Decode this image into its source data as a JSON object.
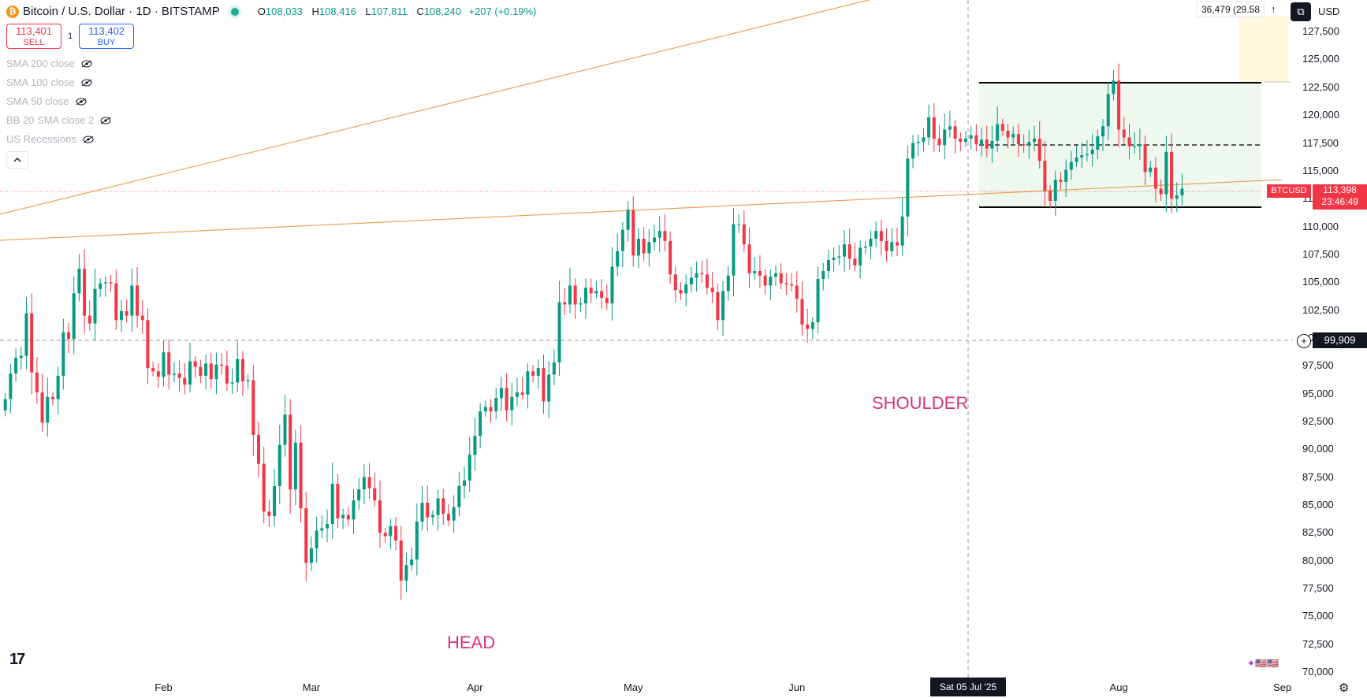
{
  "header": {
    "symbol_title": "Bitcoin / U.S. Dollar · 1D · BITSTAMP",
    "coin_glyph": "₿",
    "ohlc": {
      "o_label": "O",
      "o": "108,033",
      "h_label": "H",
      "h": "108,416",
      "l_label": "L",
      "l": "107,811",
      "c_label": "C",
      "c": "108,240",
      "change": "+207 (+0.19%)"
    },
    "sell_price": "113,401",
    "sell_label": "SELL",
    "spread": "1",
    "buy_price": "113,402",
    "buy_label": "BUY"
  },
  "indicators": [
    {
      "label": "SMA 200 close"
    },
    {
      "label": "SMA 100 close"
    },
    {
      "label": "SMA 50 close"
    },
    {
      "label": "BB 20 SMA close 2"
    },
    {
      "label": "US Recessions"
    }
  ],
  "toolbar": {
    "pl_readout": "36,479 (29.58",
    "currency": "USD",
    "up_arrow": "↑",
    "square_glyph": "⧉",
    "logo": "17",
    "gear_glyph": "⚙",
    "flags_text": "✦🇺🇸🇺🇸"
  },
  "annotations": {
    "head": "HEAD",
    "shoulder": "SHOULDER"
  },
  "tags": {
    "symbol": "BTCUSD",
    "last_price": "113,398",
    "countdown": "23:46:49",
    "crosshair_price": "99,909",
    "crosshair_date": "Sat 05 Jul '25"
  },
  "colors": {
    "up": "#089981",
    "down": "#f23645",
    "trend": "#e8a35a",
    "range_fill": "#e8f5e9",
    "annotation": "#d6337a"
  },
  "chart_data": {
    "type": "candlestick",
    "ylim": [
      70000,
      128500
    ],
    "y_ticks": [
      "127,500",
      "125,000",
      "122,500",
      "120,000",
      "117,500",
      "115,000",
      "112,500",
      "110,000",
      "107,500",
      "105,000",
      "102,500",
      "100,000",
      "97,500",
      "95,000",
      "92,500",
      "90,000",
      "87,500",
      "85,000",
      "82,500",
      "80,000",
      "77,500",
      "75,000",
      "72,500",
      "70,000"
    ],
    "x_ticks": [
      "Feb",
      "Mar",
      "Apr",
      "May",
      "Jun",
      "Aug",
      "Sep"
    ],
    "x_range": [
      "2025-01-01",
      "2025-09-03"
    ],
    "closes_start_date": "2025-01-02",
    "closes": [
      94500,
      96800,
      98200,
      98400,
      102200,
      96900,
      95100,
      92400,
      94700,
      94500,
      96600,
      100500,
      99900,
      104000,
      106200,
      102000,
      101300,
      104400,
      104900,
      105000,
      104900,
      101600,
      102400,
      102000,
      104700,
      102000,
      101600,
      97300,
      97000,
      96500,
      98700,
      96700,
      96800,
      96400,
      95800,
      97900,
      97400,
      96600,
      97700,
      96300,
      97600,
      97500,
      95900,
      96000,
      98100,
      96100,
      96200,
      91300,
      88700,
      84400,
      84000,
      86700,
      90400,
      93100,
      86400,
      90600,
      84700,
      79800,
      81100,
      82700,
      82900,
      83300,
      86900,
      83800,
      84100,
      83700,
      85400,
      86400,
      87500,
      86500,
      85400,
      82500,
      82200,
      83100,
      81800,
      78200,
      79600,
      80100,
      83500,
      85200,
      83900,
      84100,
      85600,
      84200,
      83600,
      84800,
      86700,
      87200,
      89500,
      91200,
      93400,
      93800,
      93400,
      94600,
      95500,
      93500,
      94700,
      95100,
      94900,
      97000,
      96600,
      97300,
      94300,
      96700,
      97800,
      103200,
      103000,
      104700,
      103000,
      103100,
      104500,
      104000,
      104200,
      103600,
      103100,
      106400,
      107800,
      109700,
      111500,
      107400,
      108900,
      107600,
      108600,
      109000,
      109600,
      108700,
      105700,
      104300,
      104000,
      104800,
      105400,
      105800,
      105700,
      104500,
      104100,
      101600,
      104200,
      105600,
      110200,
      110200,
      108400,
      105800,
      106000,
      105600,
      104700,
      105500,
      105800,
      104900,
      104800,
      104700,
      103500,
      101200,
      100800,
      101400,
      105300,
      106000,
      107000,
      107200,
      107300,
      108400,
      107100,
      106500,
      108100,
      108200,
      108900,
      109600,
      108700,
      107800,
      108600,
      108300,
      110900,
      116100,
      117500,
      117600,
      118000,
      119800,
      117900,
      117300,
      118700,
      119000,
      117900,
      117600,
      117900,
      118200,
      117400,
      117800,
      117000,
      117700,
      119200,
      118600,
      118000,
      118300,
      117400,
      117300,
      117600,
      117900,
      115900,
      113200,
      112300,
      114200,
      114000,
      115100,
      115800,
      116200,
      116400,
      116500,
      116900,
      118100,
      119000,
      121900,
      123100,
      118700,
      118000,
      117200,
      117200,
      117400,
      114900,
      115300,
      113400,
      112900,
      116700,
      112500,
      112800,
      113400
    ]
  }
}
